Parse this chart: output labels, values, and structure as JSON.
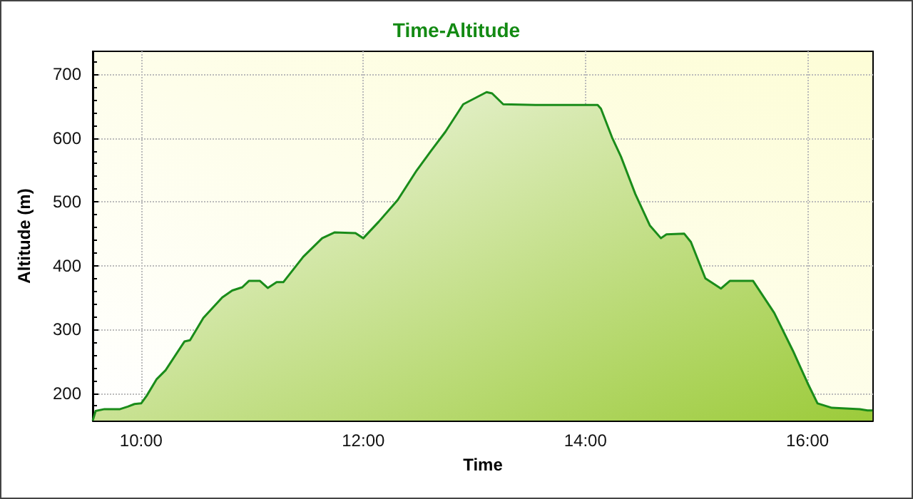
{
  "chart_data": {
    "type": "area",
    "title": "Time-Altitude",
    "xlabel": "Time",
    "ylabel": "Altitude (m)",
    "x": [
      9.564,
      9.59,
      9.67,
      9.81,
      9.88,
      9.94,
      10.0,
      10.05,
      10.14,
      10.22,
      10.39,
      10.44,
      10.56,
      10.73,
      10.82,
      10.91,
      10.97,
      11.07,
      11.14,
      11.22,
      11.28,
      11.46,
      11.63,
      11.74,
      11.93,
      12.0,
      12.14,
      12.31,
      12.48,
      12.61,
      12.74,
      12.9,
      13.11,
      13.16,
      13.26,
      13.55,
      14.11,
      14.14,
      14.24,
      14.32,
      14.45,
      14.58,
      14.68,
      14.73,
      14.89,
      14.95,
      15.08,
      15.22,
      15.3,
      15.51,
      15.7,
      15.87,
      16.0,
      16.09,
      16.22,
      16.47,
      16.54,
      16.585
    ],
    "series": [
      {
        "color": "#1a8c1a",
        "values": [
          157,
          172,
          175,
          175,
          179,
          183,
          184,
          196,
          222,
          236,
          281,
          283,
          318,
          350,
          361,
          366,
          376,
          376,
          365,
          374,
          374,
          414,
          443,
          452,
          451,
          443,
          469,
          503,
          549,
          580,
          610,
          653,
          672,
          670,
          653,
          652,
          652,
          646,
          601,
          571,
          512,
          463,
          443,
          449,
          450,
          437,
          380,
          364,
          376,
          376,
          326,
          266,
          216,
          184,
          177,
          175,
          173,
          173
        ]
      }
    ],
    "xlim": [
      9.564,
      16.59
    ],
    "xticks": [
      {
        "value": 10,
        "label": "10:00"
      },
      {
        "value": 10.5,
        "label": null
      },
      {
        "value": 11,
        "label": null
      },
      {
        "value": 11.5,
        "label": null
      },
      {
        "value": 12,
        "label": "12:00"
      },
      {
        "value": 12.5,
        "label": null
      },
      {
        "value": 13,
        "label": null
      },
      {
        "value": 13.5,
        "label": null
      },
      {
        "value": 14,
        "label": "14:00"
      },
      {
        "value": 14.5,
        "label": null
      },
      {
        "value": 15,
        "label": null
      },
      {
        "value": 15.5,
        "label": null
      },
      {
        "value": 16,
        "label": "16:00"
      },
      {
        "value": 16.5,
        "label": null
      }
    ],
    "ylim": [
      157,
      736
    ],
    "yticks": [
      {
        "value": 160,
        "label": null
      },
      {
        "value": 180,
        "label": null
      },
      200,
      {
        "value": 220,
        "label": null
      },
      {
        "value": 240,
        "label": null
      },
      {
        "value": 260,
        "label": null
      },
      {
        "value": 280,
        "label": null
      },
      300,
      {
        "value": 320,
        "label": null
      },
      {
        "value": 340,
        "label": null
      },
      {
        "value": 360,
        "label": null
      },
      {
        "value": 380,
        "label": null
      },
      400,
      {
        "value": 420,
        "label": null
      },
      {
        "value": 440,
        "label": null
      },
      {
        "value": 460,
        "label": null
      },
      {
        "value": 480,
        "label": null
      },
      500,
      {
        "value": 520,
        "label": null
      },
      {
        "value": 540,
        "label": null
      },
      {
        "value": 560,
        "label": null
      },
      {
        "value": 580,
        "label": null
      },
      600,
      {
        "value": 620,
        "label": null
      },
      {
        "value": 640,
        "label": null
      },
      {
        "value": 660,
        "label": null
      },
      {
        "value": 680,
        "label": null
      },
      700,
      {
        "value": 720,
        "label": null
      }
    ],
    "grid": true,
    "marker": "none"
  }
}
